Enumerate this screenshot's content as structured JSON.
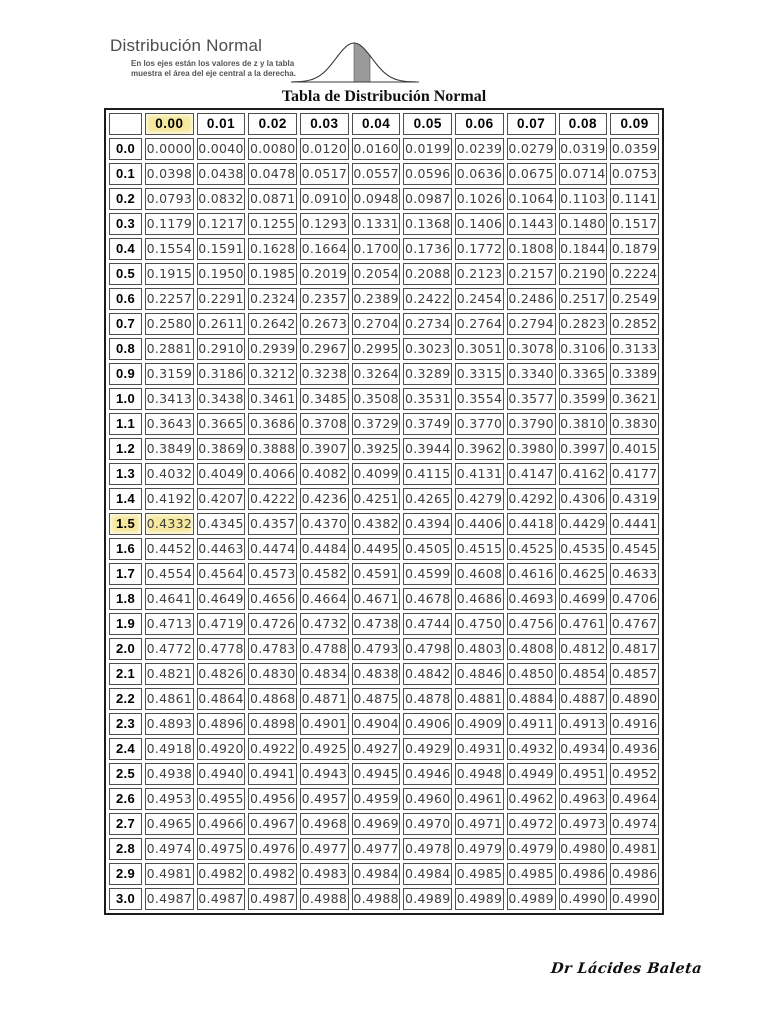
{
  "header": {
    "heading": "Distribución Normal",
    "note_line1": "En los ejes están los valores de z y la tabla",
    "note_line2": "muestra el área del eje central a la derecha.",
    "curve_icon": "normal-bell-curve-shaded-central-right-area"
  },
  "title": "Tabla de Distribución Normal",
  "signature": "Dr Lácides Baleta",
  "colors": {
    "highlight": "#F6E89D",
    "cell_border": "#4f4f4f",
    "outer_border": "#1c1c1c",
    "data_text": "#3e3e3e",
    "curve_fill": "#9A9A9A"
  },
  "table": {
    "corner_label": "",
    "col_headers": [
      "0.00",
      "0.01",
      "0.02",
      "0.03",
      "0.04",
      "0.05",
      "0.06",
      "0.07",
      "0.08",
      "0.09"
    ],
    "rows": [
      {
        "z": "0.0",
        "values": [
          "0.0000",
          "0.0040",
          "0.0080",
          "0.0120",
          "0.0160",
          "0.0199",
          "0.0239",
          "0.0279",
          "0.0319",
          "0.0359"
        ]
      },
      {
        "z": "0.1",
        "values": [
          "0.0398",
          "0.0438",
          "0.0478",
          "0.0517",
          "0.0557",
          "0.0596",
          "0.0636",
          "0.0675",
          "0.0714",
          "0.0753"
        ]
      },
      {
        "z": "0.2",
        "values": [
          "0.0793",
          "0.0832",
          "0.0871",
          "0.0910",
          "0.0948",
          "0.0987",
          "0.1026",
          "0.1064",
          "0.1103",
          "0.1141"
        ]
      },
      {
        "z": "0.3",
        "values": [
          "0.1179",
          "0.1217",
          "0.1255",
          "0.1293",
          "0.1331",
          "0.1368",
          "0.1406",
          "0.1443",
          "0.1480",
          "0.1517"
        ]
      },
      {
        "z": "0.4",
        "values": [
          "0.1554",
          "0.1591",
          "0.1628",
          "0.1664",
          "0.1700",
          "0.1736",
          "0.1772",
          "0.1808",
          "0.1844",
          "0.1879"
        ]
      },
      {
        "z": "0.5",
        "values": [
          "0.1915",
          "0.1950",
          "0.1985",
          "0.2019",
          "0.2054",
          "0.2088",
          "0.2123",
          "0.2157",
          "0.2190",
          "0.2224"
        ]
      },
      {
        "z": "0.6",
        "values": [
          "0.2257",
          "0.2291",
          "0.2324",
          "0.2357",
          "0.2389",
          "0.2422",
          "0.2454",
          "0.2486",
          "0.2517",
          "0.2549"
        ]
      },
      {
        "z": "0.7",
        "values": [
          "0.2580",
          "0.2611",
          "0.2642",
          "0.2673",
          "0.2704",
          "0.2734",
          "0.2764",
          "0.2794",
          "0.2823",
          "0.2852"
        ]
      },
      {
        "z": "0.8",
        "values": [
          "0.2881",
          "0.2910",
          "0.2939",
          "0.2967",
          "0.2995",
          "0.3023",
          "0.3051",
          "0.3078",
          "0.3106",
          "0.3133"
        ]
      },
      {
        "z": "0.9",
        "values": [
          "0.3159",
          "0.3186",
          "0.3212",
          "0.3238",
          "0.3264",
          "0.3289",
          "0.3315",
          "0.3340",
          "0.3365",
          "0.3389"
        ]
      },
      {
        "z": "1.0",
        "values": [
          "0.3413",
          "0.3438",
          "0.3461",
          "0.3485",
          "0.3508",
          "0.3531",
          "0.3554",
          "0.3577",
          "0.3599",
          "0.3621"
        ]
      },
      {
        "z": "1.1",
        "values": [
          "0.3643",
          "0.3665",
          "0.3686",
          "0.3708",
          "0.3729",
          "0.3749",
          "0.3770",
          "0.3790",
          "0.3810",
          "0.3830"
        ]
      },
      {
        "z": "1.2",
        "values": [
          "0.3849",
          "0.3869",
          "0.3888",
          "0.3907",
          "0.3925",
          "0.3944",
          "0.3962",
          "0.3980",
          "0.3997",
          "0.4015"
        ]
      },
      {
        "z": "1.3",
        "values": [
          "0.4032",
          "0.4049",
          "0.4066",
          "0.4082",
          "0.4099",
          "0.4115",
          "0.4131",
          "0.4147",
          "0.4162",
          "0.4177"
        ]
      },
      {
        "z": "1.4",
        "values": [
          "0.4192",
          "0.4207",
          "0.4222",
          "0.4236",
          "0.4251",
          "0.4265",
          "0.4279",
          "0.4292",
          "0.4306",
          "0.4319"
        ]
      },
      {
        "z": "1.5",
        "values": [
          "0.4332",
          "0.4345",
          "0.4357",
          "0.4370",
          "0.4382",
          "0.4394",
          "0.4406",
          "0.4418",
          "0.4429",
          "0.4441"
        ]
      },
      {
        "z": "1.6",
        "values": [
          "0.4452",
          "0.4463",
          "0.4474",
          "0.4484",
          "0.4495",
          "0.4505",
          "0.4515",
          "0.4525",
          "0.4535",
          "0.4545"
        ]
      },
      {
        "z": "1.7",
        "values": [
          "0.4554",
          "0.4564",
          "0.4573",
          "0.4582",
          "0.4591",
          "0.4599",
          "0.4608",
          "0.4616",
          "0.4625",
          "0.4633"
        ]
      },
      {
        "z": "1.8",
        "values": [
          "0.4641",
          "0.4649",
          "0.4656",
          "0.4664",
          "0.4671",
          "0.4678",
          "0.4686",
          "0.4693",
          "0.4699",
          "0.4706"
        ]
      },
      {
        "z": "1.9",
        "values": [
          "0.4713",
          "0.4719",
          "0.4726",
          "0.4732",
          "0.4738",
          "0.4744",
          "0.4750",
          "0.4756",
          "0.4761",
          "0.4767"
        ]
      },
      {
        "z": "2.0",
        "values": [
          "0.4772",
          "0.4778",
          "0.4783",
          "0.4788",
          "0.4793",
          "0.4798",
          "0.4803",
          "0.4808",
          "0.4812",
          "0.4817"
        ]
      },
      {
        "z": "2.1",
        "values": [
          "0.4821",
          "0.4826",
          "0.4830",
          "0.4834",
          "0.4838",
          "0.4842",
          "0.4846",
          "0.4850",
          "0.4854",
          "0.4857"
        ]
      },
      {
        "z": "2.2",
        "values": [
          "0.4861",
          "0.4864",
          "0.4868",
          "0.4871",
          "0.4875",
          "0.4878",
          "0.4881",
          "0.4884",
          "0.4887",
          "0.4890"
        ]
      },
      {
        "z": "2.3",
        "values": [
          "0.4893",
          "0.4896",
          "0.4898",
          "0.4901",
          "0.4904",
          "0.4906",
          "0.4909",
          "0.4911",
          "0.4913",
          "0.4916"
        ]
      },
      {
        "z": "2.4",
        "values": [
          "0.4918",
          "0.4920",
          "0.4922",
          "0.4925",
          "0.4927",
          "0.4929",
          "0.4931",
          "0.4932",
          "0.4934",
          "0.4936"
        ]
      },
      {
        "z": "2.5",
        "values": [
          "0.4938",
          "0.4940",
          "0.4941",
          "0.4943",
          "0.4945",
          "0.4946",
          "0.4948",
          "0.4949",
          "0.4951",
          "0.4952"
        ]
      },
      {
        "z": "2.6",
        "values": [
          "0.4953",
          "0.4955",
          "0.4956",
          "0.4957",
          "0.4959",
          "0.4960",
          "0.4961",
          "0.4962",
          "0.4963",
          "0.4964"
        ]
      },
      {
        "z": "2.7",
        "values": [
          "0.4965",
          "0.4966",
          "0.4967",
          "0.4968",
          "0.4969",
          "0.4970",
          "0.4971",
          "0.4972",
          "0.4973",
          "0.4974"
        ]
      },
      {
        "z": "2.8",
        "values": [
          "0.4974",
          "0.4975",
          "0.4976",
          "0.4977",
          "0.4977",
          "0.4978",
          "0.4979",
          "0.4979",
          "0.4980",
          "0.4981"
        ]
      },
      {
        "z": "2.9",
        "values": [
          "0.4981",
          "0.4982",
          "0.4982",
          "0.4983",
          "0.4984",
          "0.4984",
          "0.4985",
          "0.4985",
          "0.4986",
          "0.4986"
        ]
      },
      {
        "z": "3.0",
        "values": [
          "0.4987",
          "0.4987",
          "0.4987",
          "0.4988",
          "0.4988",
          "0.4989",
          "0.4989",
          "0.4989",
          "0.4990",
          "0.4990"
        ]
      }
    ],
    "highlights": {
      "header_col": "0.00",
      "row_label": "1.5",
      "cell": {
        "row": "1.5",
        "col": "0.00"
      }
    }
  }
}
